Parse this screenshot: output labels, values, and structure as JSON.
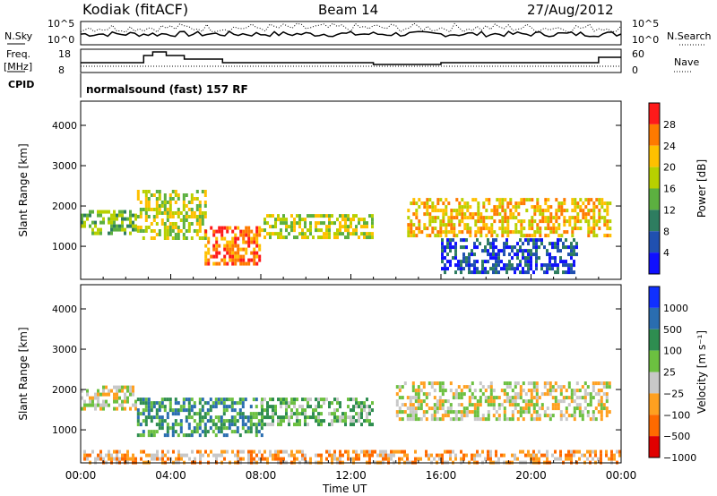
{
  "header": {
    "station": "Kodiak (fitACF)",
    "beam": "Beam 14",
    "date": "27/Aug/2012"
  },
  "side_labels": {
    "nsky": "N.Sky",
    "nsearch": "N.Search",
    "freq": "Freq.",
    "freq_unit": "[MHz]",
    "cpid": "CPID",
    "nave": "Nave",
    "cpid_text": "normalsound (fast) 157 RF",
    "noise_ticks": [
      "10^5",
      "10^0"
    ],
    "freq_ticks": [
      "18",
      "8"
    ],
    "nave_ticks": [
      "60",
      "0"
    ]
  },
  "chart_data": [
    {
      "type": "heatmap",
      "title": "",
      "xlabel": "Time UT",
      "ylabel": "Slant Range [km]",
      "x_ticks": [
        "00:00",
        "04:00",
        "08:00",
        "12:00",
        "16:00",
        "20:00",
        "00:00"
      ],
      "xlim_hours": [
        0,
        24
      ],
      "ylim_km": [
        180,
        4600
      ],
      "y_ticks": [
        1000,
        2000,
        3000,
        4000
      ],
      "colorbar": {
        "label": "Power [dB]",
        "ticks": [
          "28",
          "24",
          "20",
          "16",
          "12",
          "8",
          "4"
        ],
        "colors": [
          "#ff1a1a",
          "#ff7a00",
          "#ffc000",
          "#b8d000",
          "#5cb040",
          "#2e7d60",
          "#2050b0",
          "#1010ff"
        ]
      },
      "echo_bands": [
        {
          "t0": 0.0,
          "t1": 2.5,
          "r0": 1350,
          "r1": 1900,
          "level": 4
        },
        {
          "t0": 2.5,
          "t1": 5.5,
          "r0": 1200,
          "r1": 2400,
          "level": 3
        },
        {
          "t0": 5.5,
          "t1": 8.0,
          "r0": 600,
          "r1": 1500,
          "level": 1
        },
        {
          "t0": 8.0,
          "t1": 13.0,
          "r0": 1200,
          "r1": 1800,
          "level": 3
        },
        {
          "t0": 14.5,
          "t1": 23.5,
          "r0": 1300,
          "r1": 2200,
          "level": 2
        },
        {
          "t0": 16.0,
          "t1": 22.0,
          "r0": 400,
          "r1": 1200,
          "level": 6
        }
      ]
    },
    {
      "type": "heatmap",
      "title": "",
      "xlabel": "Time UT",
      "ylabel": "Slant Range [km]",
      "x_ticks": [
        "00:00",
        "04:00",
        "08:00",
        "12:00",
        "16:00",
        "20:00",
        "00:00"
      ],
      "xlim_hours": [
        0,
        24
      ],
      "ylim_km": [
        180,
        4600
      ],
      "y_ticks": [
        1000,
        2000,
        3000,
        4000
      ],
      "colorbar": {
        "label": "Velocity [m s⁻¹]",
        "ticks": [
          "1000",
          "500",
          "100",
          "25",
          "−25",
          "−100",
          "−500",
          "−1000"
        ],
        "colors": [
          "#1030ff",
          "#2a6db0",
          "#2e8d50",
          "#6cc040",
          "#c8c8c8",
          "#ffa020",
          "#ff6a00",
          "#e00000"
        ]
      },
      "echo_bands": [
        {
          "t0": 0.0,
          "t1": 2.5,
          "r0": 1500,
          "r1": 2100,
          "level": 4
        },
        {
          "t0": 2.5,
          "t1": 8.0,
          "r0": 900,
          "r1": 1800,
          "level": 2
        },
        {
          "t0": 8.0,
          "t1": 13.0,
          "r0": 1100,
          "r1": 1800,
          "level": 3
        },
        {
          "t0": 14.0,
          "t1": 23.5,
          "r0": 1300,
          "r1": 2200,
          "level": 4
        },
        {
          "t0": 0.0,
          "t1": 24.0,
          "r0": 200,
          "r1": 500,
          "level": 5
        }
      ]
    }
  ]
}
